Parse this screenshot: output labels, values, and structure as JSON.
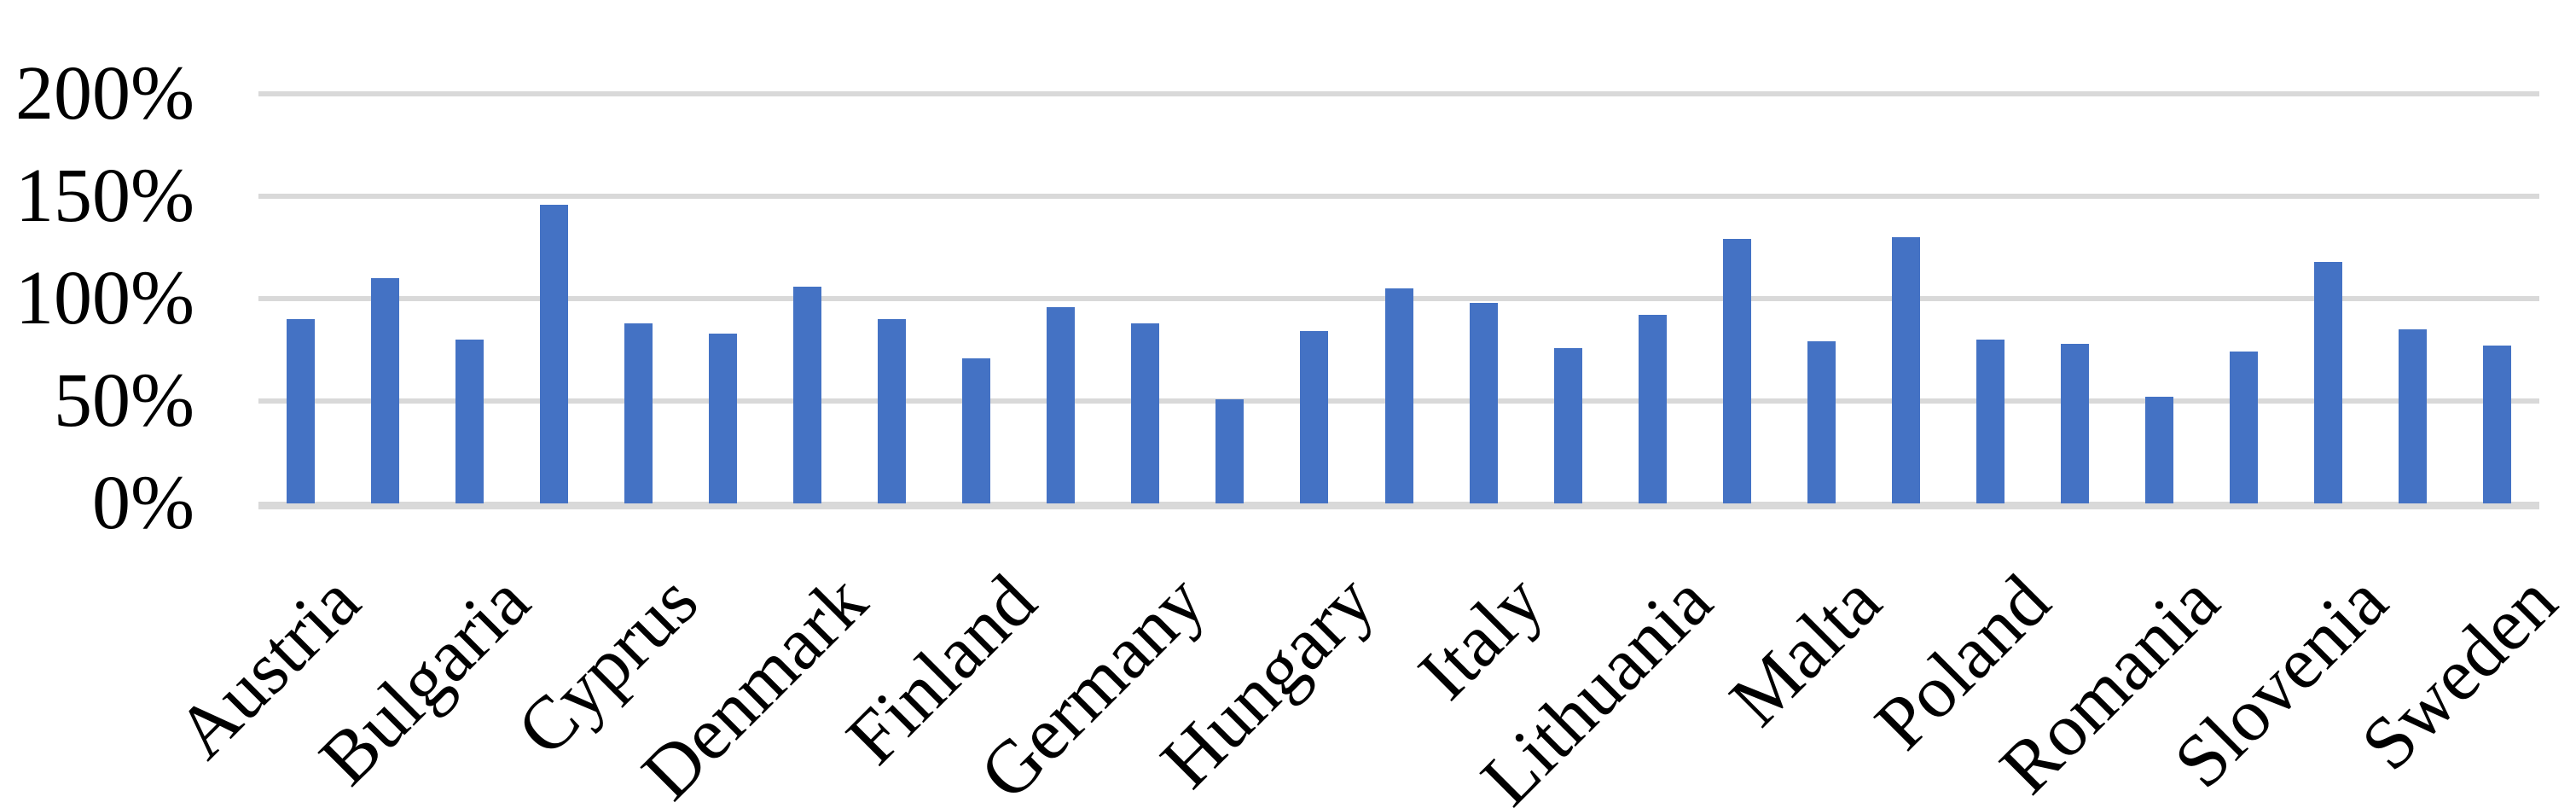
{
  "chart_data": {
    "type": "bar",
    "title": "",
    "xlabel": "",
    "ylabel": "",
    "ylim": [
      0,
      200
    ],
    "grid": true,
    "legend": "none",
    "x_label_rotation_deg": 45,
    "bar_color": "#4472C4",
    "gridline_color": "#D9D9D9",
    "text_color": "#000000",
    "y_ticks": [
      {
        "value": 200,
        "label": "200%"
      },
      {
        "value": 150,
        "label": "150%"
      },
      {
        "value": 100,
        "label": "100%"
      },
      {
        "value": 50,
        "label": "50%"
      },
      {
        "value": 0,
        "label": "0%"
      }
    ],
    "note_visible_labels": "axis shows a label under every other bar",
    "bars": [
      {
        "label": "Austria",
        "value": 90
      },
      {
        "label": "",
        "value": 110
      },
      {
        "label": "Bulgaria",
        "value": 80
      },
      {
        "label": "",
        "value": 146
      },
      {
        "label": "Cyprus",
        "value": 88
      },
      {
        "label": "",
        "value": 83
      },
      {
        "label": "Denmark",
        "value": 106
      },
      {
        "label": "",
        "value": 90
      },
      {
        "label": "Finland",
        "value": 71
      },
      {
        "label": "",
        "value": 96
      },
      {
        "label": "Germany",
        "value": 88
      },
      {
        "label": "",
        "value": 51
      },
      {
        "label": "Hungary",
        "value": 84
      },
      {
        "label": "",
        "value": 105
      },
      {
        "label": "Italy",
        "value": 98
      },
      {
        "label": "",
        "value": 76
      },
      {
        "label": "Lithuania",
        "value": 92
      },
      {
        "label": "",
        "value": 129
      },
      {
        "label": "Malta",
        "value": 79
      },
      {
        "label": "",
        "value": 130
      },
      {
        "label": "Poland",
        "value": 80
      },
      {
        "label": "",
        "value": 78
      },
      {
        "label": "Romania",
        "value": 52
      },
      {
        "label": "",
        "value": 74
      },
      {
        "label": "Slovenia",
        "value": 118
      },
      {
        "label": "",
        "value": 85
      },
      {
        "label": "Sweden",
        "value": 77
      }
    ],
    "visible_x_labels": [
      "Austria",
      "Bulgaria",
      "Cyprus",
      "Denmark",
      "Finland",
      "Germany",
      "Hungary",
      "Italy",
      "Lithuania",
      "Malta",
      "Poland",
      "Romania",
      "Slovenia",
      "Sweden"
    ]
  }
}
